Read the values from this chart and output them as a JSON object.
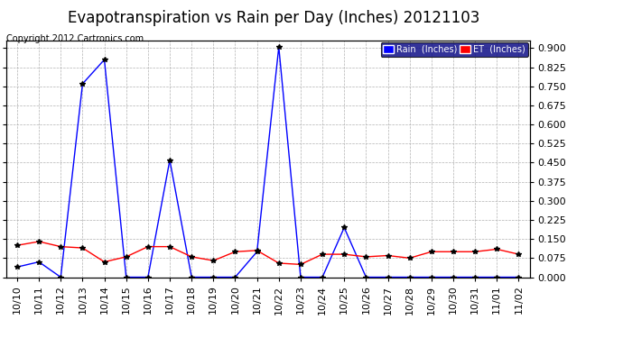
{
  "title": "Evapotranspiration vs Rain per Day (Inches) 20121103",
  "copyright_text": "Copyright 2012 Cartronics.com",
  "background_color": "#ffffff",
  "plot_bg_color": "#ffffff",
  "grid_color": "#aaaaaa",
  "ylim": [
    0.0,
    0.93
  ],
  "yticks": [
    0.0,
    0.075,
    0.15,
    0.225,
    0.3,
    0.375,
    0.45,
    0.525,
    0.6,
    0.675,
    0.75,
    0.825,
    0.9
  ],
  "dates": [
    "10/10",
    "10/11",
    "10/12",
    "10/13",
    "10/14",
    "10/15",
    "10/16",
    "10/17",
    "10/18",
    "10/19",
    "10/20",
    "10/21",
    "10/22",
    "10/23",
    "10/24",
    "10/25",
    "10/26",
    "10/27",
    "10/28",
    "10/29",
    "10/30",
    "10/31",
    "11/01",
    "11/02"
  ],
  "rain_values": [
    0.04,
    0.06,
    0.0,
    0.76,
    0.855,
    0.0,
    0.0,
    0.46,
    0.0,
    0.0,
    0.0,
    0.1,
    0.905,
    0.0,
    0.0,
    0.195,
    0.0,
    0.0,
    0.0,
    0.0,
    0.0,
    0.0,
    0.0,
    0.0
  ],
  "et_values": [
    0.125,
    0.14,
    0.12,
    0.115,
    0.06,
    0.08,
    0.12,
    0.12,
    0.08,
    0.065,
    0.1,
    0.105,
    0.055,
    0.05,
    0.09,
    0.09,
    0.08,
    0.085,
    0.075,
    0.1,
    0.1,
    0.1,
    0.11,
    0.09
  ],
  "rain_color": "#0000ff",
  "et_color": "#ff0000",
  "rain_label": "Rain  (Inches)",
  "et_label": "ET  (Inches)",
  "legend_bg": "#000080",
  "legend_text_color": "#ffffff",
  "title_fontsize": 12,
  "copyright_fontsize": 7,
  "tick_fontsize": 8
}
